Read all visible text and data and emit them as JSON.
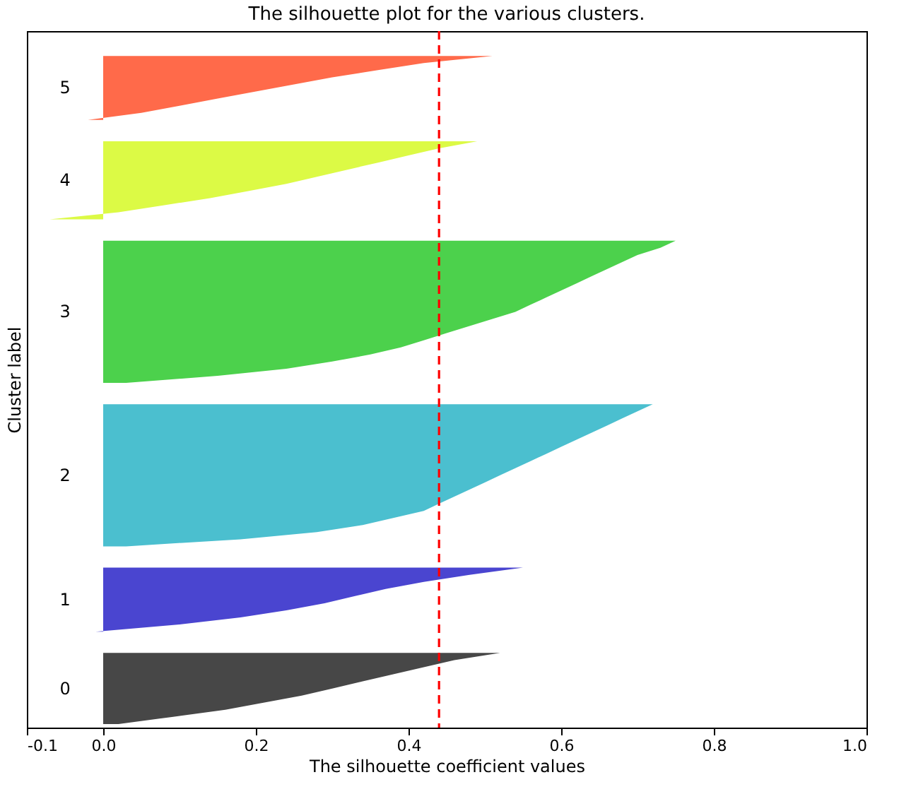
{
  "chart_data": {
    "type": "area",
    "orientation": "horizontal",
    "title": "The silhouette plot for the various clusters.",
    "xlabel": "The silhouette coefficient values",
    "ylabel": "Cluster label",
    "categories": [
      null,
      null,
      null,
      null,
      null,
      null,
      null,
      null,
      null,
      null,
      null,
      null,
      null,
      null,
      null,
      null,
      null,
      null,
      null,
      null,
      null,
      null,
      null,
      null,
      null,
      null,
      null,
      null,
      null,
      null,
      null,
      null,
      null,
      null,
      null,
      null,
      null,
      null,
      null,
      null,
      null,
      null,
      null,
      null,
      null,
      null,
      null,
      null,
      null,
      null,
      null,
      null,
      null,
      null,
      null,
      null,
      null,
      null,
      null,
      null,
      null,
      null,
      null,
      null,
      null,
      null,
      null,
      null,
      null,
      null,
      null,
      null,
      null,
      null,
      null,
      null,
      null,
      null,
      null,
      null,
      null,
      null,
      null,
      null,
      null,
      null,
      null,
      null,
      null,
      null,
      null,
      null,
      null,
      null,
      null,
      null,
      null,
      null
    ],
    "series": [
      {
        "color": "#474747",
        "values": [
          null,
          null,
          null,
          null,
          null,
          null,
          null,
          null,
          null,
          null,
          null,
          null,
          null,
          null,
          null,
          null,
          null,
          null,
          null,
          null,
          null,
          null,
          null,
          null,
          null,
          null,
          null,
          null,
          null,
          null,
          null,
          null,
          null,
          null,
          null,
          null,
          null,
          null,
          null,
          null,
          null,
          null,
          null,
          null,
          null,
          null,
          null,
          null,
          null,
          null,
          null,
          null,
          null,
          null,
          null,
          null,
          null,
          null,
          null,
          null,
          null,
          null,
          null,
          null,
          null,
          null,
          null,
          null,
          null,
          null,
          null,
          null,
          null,
          null,
          null,
          null,
          null,
          null,
          null,
          null,
          null,
          null,
          null,
          null,
          null,
          null,
          null,
          0.52,
          0.46,
          0.42,
          0.38,
          0.34,
          0.3,
          0.26,
          0.21,
          0.16,
          0.09,
          0.02
        ]
      },
      {
        "color": "#4a45d0",
        "values": [
          null,
          null,
          null,
          null,
          null,
          null,
          null,
          null,
          null,
          null,
          null,
          null,
          null,
          null,
          null,
          null,
          null,
          null,
          null,
          null,
          null,
          null,
          null,
          null,
          null,
          null,
          null,
          null,
          null,
          null,
          null,
          null,
          null,
          null,
          null,
          null,
          null,
          null,
          null,
          null,
          null,
          null,
          null,
          null,
          null,
          null,
          null,
          null,
          null,
          null,
          null,
          null,
          null,
          null,
          null,
          null,
          null,
          null,
          null,
          null,
          null,
          null,
          null,
          null,
          null,
          null,
          null,
          null,
          null,
          null,
          null,
          null,
          null,
          null,
          null,
          0.55,
          0.48,
          0.42,
          0.37,
          0.33,
          0.29,
          0.24,
          0.18,
          0.1,
          -0.01,
          null,
          null,
          null,
          null,
          null,
          null,
          null,
          null,
          null,
          null,
          null,
          null,
          null
        ]
      },
      {
        "color": "#4bbfcf",
        "values": [
          null,
          null,
          null,
          null,
          null,
          null,
          null,
          null,
          null,
          null,
          null,
          null,
          null,
          null,
          null,
          null,
          null,
          null,
          null,
          null,
          null,
          null,
          null,
          null,
          null,
          null,
          null,
          null,
          null,
          null,
          null,
          null,
          null,
          null,
          null,
          null,
          null,
          null,
          null,
          null,
          null,
          null,
          null,
          null,
          null,
          null,
          null,
          null,
          null,
          null,
          null,
          null,
          0.72,
          0.7,
          0.68,
          0.66,
          0.64,
          0.62,
          0.6,
          0.58,
          0.56,
          0.54,
          0.52,
          0.5,
          0.48,
          0.46,
          0.44,
          0.42,
          0.38,
          0.34,
          0.28,
          0.18,
          0.03,
          null,
          null,
          null,
          null,
          null,
          null,
          null,
          null,
          null,
          null,
          null,
          null,
          null,
          null,
          null,
          null,
          null,
          null,
          null,
          null,
          null,
          null,
          null,
          null,
          null
        ]
      },
      {
        "color": "#4cd14c",
        "values": [
          null,
          null,
          null,
          null,
          null,
          null,
          null,
          null,
          null,
          null,
          null,
          null,
          null,
          null,
          null,
          null,
          null,
          null,
          null,
          null,
          null,
          null,
          null,
          null,
          null,
          null,
          null,
          null,
          null,
          0.75,
          0.73,
          0.7,
          0.68,
          0.66,
          0.64,
          0.62,
          0.6,
          0.58,
          0.56,
          0.54,
          0.51,
          0.48,
          0.45,
          0.42,
          0.39,
          0.35,
          0.3,
          0.24,
          0.15,
          0.03,
          null,
          null,
          null,
          null,
          null,
          null,
          null,
          null,
          null,
          null,
          null,
          null,
          null,
          null,
          null,
          null,
          null,
          null,
          null,
          null,
          null,
          null,
          null,
          null,
          null,
          null,
          null,
          null,
          null,
          null,
          null,
          null,
          null,
          null,
          null,
          null,
          null,
          null,
          null,
          null,
          null,
          null,
          null,
          null,
          null,
          null,
          null,
          null
        ]
      },
      {
        "color": "#dcfa45",
        "values": [
          null,
          null,
          null,
          null,
          null,
          null,
          null,
          null,
          null,
          null,
          null,
          null,
          null,
          null,
          null,
          0.49,
          0.44,
          0.4,
          0.36,
          0.32,
          0.28,
          0.24,
          0.19,
          0.14,
          0.08,
          0.02,
          -0.07,
          null,
          null,
          null,
          null,
          null,
          null,
          null,
          null,
          null,
          null,
          null,
          null,
          null,
          null,
          null,
          null,
          null,
          null,
          null,
          null,
          null,
          null,
          null,
          null,
          null,
          null,
          null,
          null,
          null,
          null,
          null,
          null,
          null,
          null,
          null,
          null,
          null,
          null,
          null,
          null,
          null,
          null,
          null,
          null,
          null,
          null,
          null,
          null,
          null,
          null,
          null,
          null,
          null,
          null,
          null,
          null,
          null,
          null,
          null,
          null,
          null,
          null,
          null,
          null,
          null,
          null,
          null,
          null,
          null,
          null,
          null
        ]
      },
      {
        "color": "#ff6a4a",
        "values": [
          null,
          null,
          null,
          0.51,
          0.42,
          0.36,
          0.3,
          0.25,
          0.2,
          0.15,
          0.1,
          0.05,
          -0.02,
          null,
          null,
          null,
          null,
          null,
          null,
          null,
          null,
          null,
          null,
          null,
          null,
          null,
          null,
          null,
          null,
          null,
          null,
          null,
          null,
          null,
          null,
          null,
          null,
          null,
          null,
          null,
          null,
          null,
          null,
          null,
          null,
          null,
          null,
          null,
          null,
          null,
          null,
          null,
          null,
          null,
          null,
          null,
          null,
          null,
          null,
          null,
          null,
          null,
          null,
          null,
          null,
          null,
          null,
          null,
          null,
          null,
          null,
          null,
          null,
          null,
          null,
          null,
          null,
          null,
          null,
          null,
          null,
          null,
          null,
          null,
          null,
          null,
          null,
          null,
          null,
          null,
          null,
          null,
          null,
          null,
          null,
          null,
          null,
          null
        ]
      }
    ],
    "annotations": [
      "0",
      "1",
      "2",
      "3",
      "4",
      "5"
    ],
    "xlim": [
      -0.1,
      1.0
    ],
    "xticks": [
      -0.1,
      {
        "value": 0,
        "label": "0.0"
      },
      0.2,
      0.4,
      0.6,
      0.8,
      {
        "value": 1,
        "label": "1.0"
      }
    ],
    "ref_lines": [
      {
        "axis": "x",
        "value": 0.44,
        "color": "#ff0000",
        "line_style": "dashed"
      }
    ],
    "grid": false,
    "legend": false
  }
}
